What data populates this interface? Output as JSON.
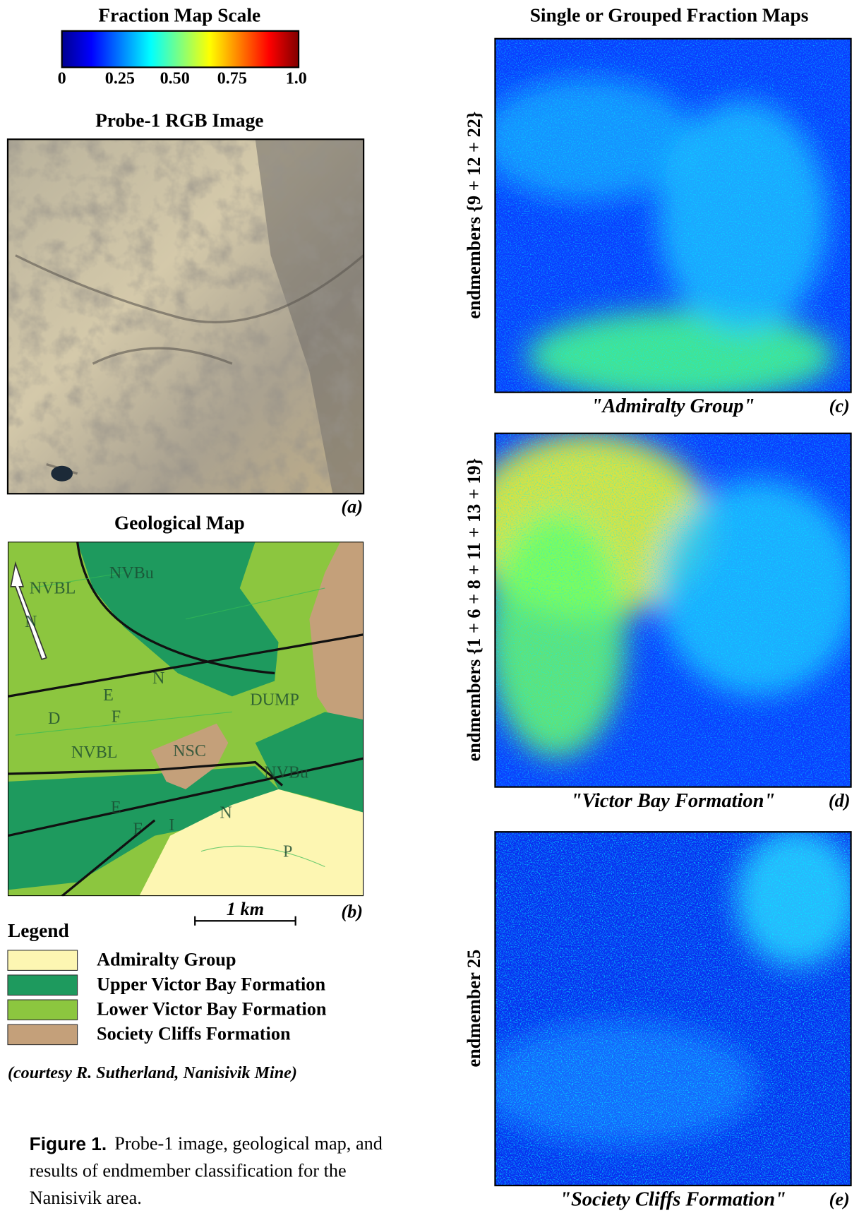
{
  "scale": {
    "title": "Fraction Map Scale",
    "ticks": [
      "0",
      "0.25",
      "0.50",
      "0.75",
      "1.0"
    ]
  },
  "rgb_panel": {
    "title": "Probe-1 RGB Image",
    "tag": "(a)"
  },
  "geo_panel": {
    "title": "Geological Map",
    "tag": "(b)",
    "scale_bar": "1 km",
    "labels": [
      "NVBu",
      "NVBL",
      "D",
      "E",
      "N",
      "F",
      "NVBL",
      "NSC",
      "DUMP",
      "NVBu",
      "E",
      "F",
      "I",
      "N",
      "P",
      "N"
    ]
  },
  "legend": {
    "title": "Legend",
    "items": [
      {
        "label": "Admiralty  Group",
        "color": "#fdf6b2"
      },
      {
        "label": "Upper Victor Bay Formation",
        "color": "#1e9a5e"
      },
      {
        "label": "Lower Victor Bay Formation",
        "color": "#8cc63f"
      },
      {
        "label": "Society Cliffs Formation",
        "color": "#c4a07a"
      }
    ]
  },
  "credit": "(courtesy R. Sutherland, Nanisivik Mine)",
  "fraction_maps": {
    "title": "Single or Grouped Fraction Maps",
    "panels": [
      {
        "side_label": "endmembers {9 + 12 + 22}",
        "caption": "\"Admiralty Group\"",
        "tag": "(c)"
      },
      {
        "side_label": "endmembers {1 + 6 + 8 + 11 + 13 + 19}",
        "caption": "\"Victor Bay Formation\"",
        "tag": "(d)"
      },
      {
        "side_label": "endmember 25",
        "caption": "\"Society Cliffs Formation\"",
        "tag": "(e)"
      }
    ]
  },
  "figure_caption": {
    "label": "Figure 1.",
    "lines": [
      "Probe-1 image, geological map, and",
      "results of endmember classification for the",
      "Nanisivik area."
    ]
  }
}
